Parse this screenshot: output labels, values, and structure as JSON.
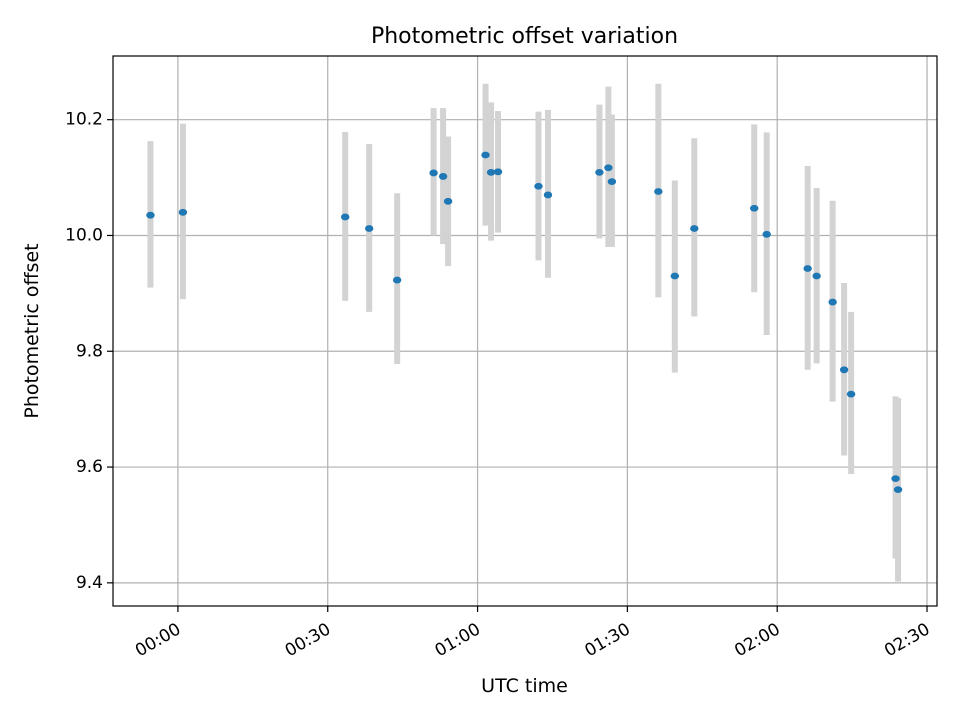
{
  "chart_data": {
    "type": "scatter",
    "title": "Photometric offset variation",
    "xlabel": "UTC time",
    "ylabel": "Photometric offset",
    "xlim": [
      "23:47",
      "02:32"
    ],
    "ylim": [
      9.36,
      10.31
    ],
    "x_ticks": [
      "00:00",
      "00:30",
      "01:00",
      "01:30",
      "02:00",
      "02:30"
    ],
    "y_ticks": [
      "9.4",
      "9.6",
      "9.8",
      "10.0",
      "10.2"
    ],
    "grid": true,
    "colors": {
      "point": "#1f77b4",
      "errorbar": "#d3d3d3",
      "grid": "#b0b0b0"
    },
    "series": [
      {
        "x": [
          "23:54.5",
          "00:01.0",
          "00:33.5",
          "00:38.3",
          "00:43.9",
          "00:51.2",
          "00:53.1",
          "00:54.1",
          "01:01.6",
          "01:02.7",
          "01:04.1",
          "01:12.2",
          "01:14.1",
          "01:24.4",
          "01:26.2",
          "01:26.9",
          "01:36.2",
          "01:39.5",
          "01:43.4",
          "01:55.4",
          "01:57.9",
          "02:06.1",
          "02:07.9",
          "02:11.1",
          "02:13.4",
          "02:14.8",
          "02:23.7",
          "02:24.2"
        ],
        "values": [
          10.035,
          10.04,
          10.032,
          10.012,
          9.923,
          10.108,
          10.102,
          10.059,
          10.139,
          10.109,
          10.11,
          10.085,
          10.07,
          10.109,
          10.117,
          10.093,
          10.076,
          9.93,
          10.012,
          10.047,
          10.002,
          9.943,
          9.93,
          9.885,
          9.768,
          9.726,
          9.58,
          9.561
        ],
        "error_low": [
          9.91,
          9.89,
          9.887,
          9.868,
          9.778,
          10.0,
          9.985,
          9.947,
          10.017,
          9.991,
          10.005,
          9.957,
          9.927,
          9.995,
          9.98,
          9.98,
          9.893,
          9.763,
          9.86,
          9.902,
          9.828,
          9.768,
          9.779,
          9.713,
          9.62,
          9.588,
          9.442,
          9.402
        ],
        "error_high": [
          10.163,
          10.193,
          10.179,
          10.158,
          10.073,
          10.22,
          10.22,
          10.171,
          10.262,
          10.23,
          10.215,
          10.214,
          10.217,
          10.226,
          10.257,
          10.209,
          10.262,
          10.095,
          10.168,
          10.192,
          10.178,
          10.12,
          10.082,
          10.06,
          9.918,
          9.868,
          9.722,
          9.719
        ]
      }
    ]
  }
}
